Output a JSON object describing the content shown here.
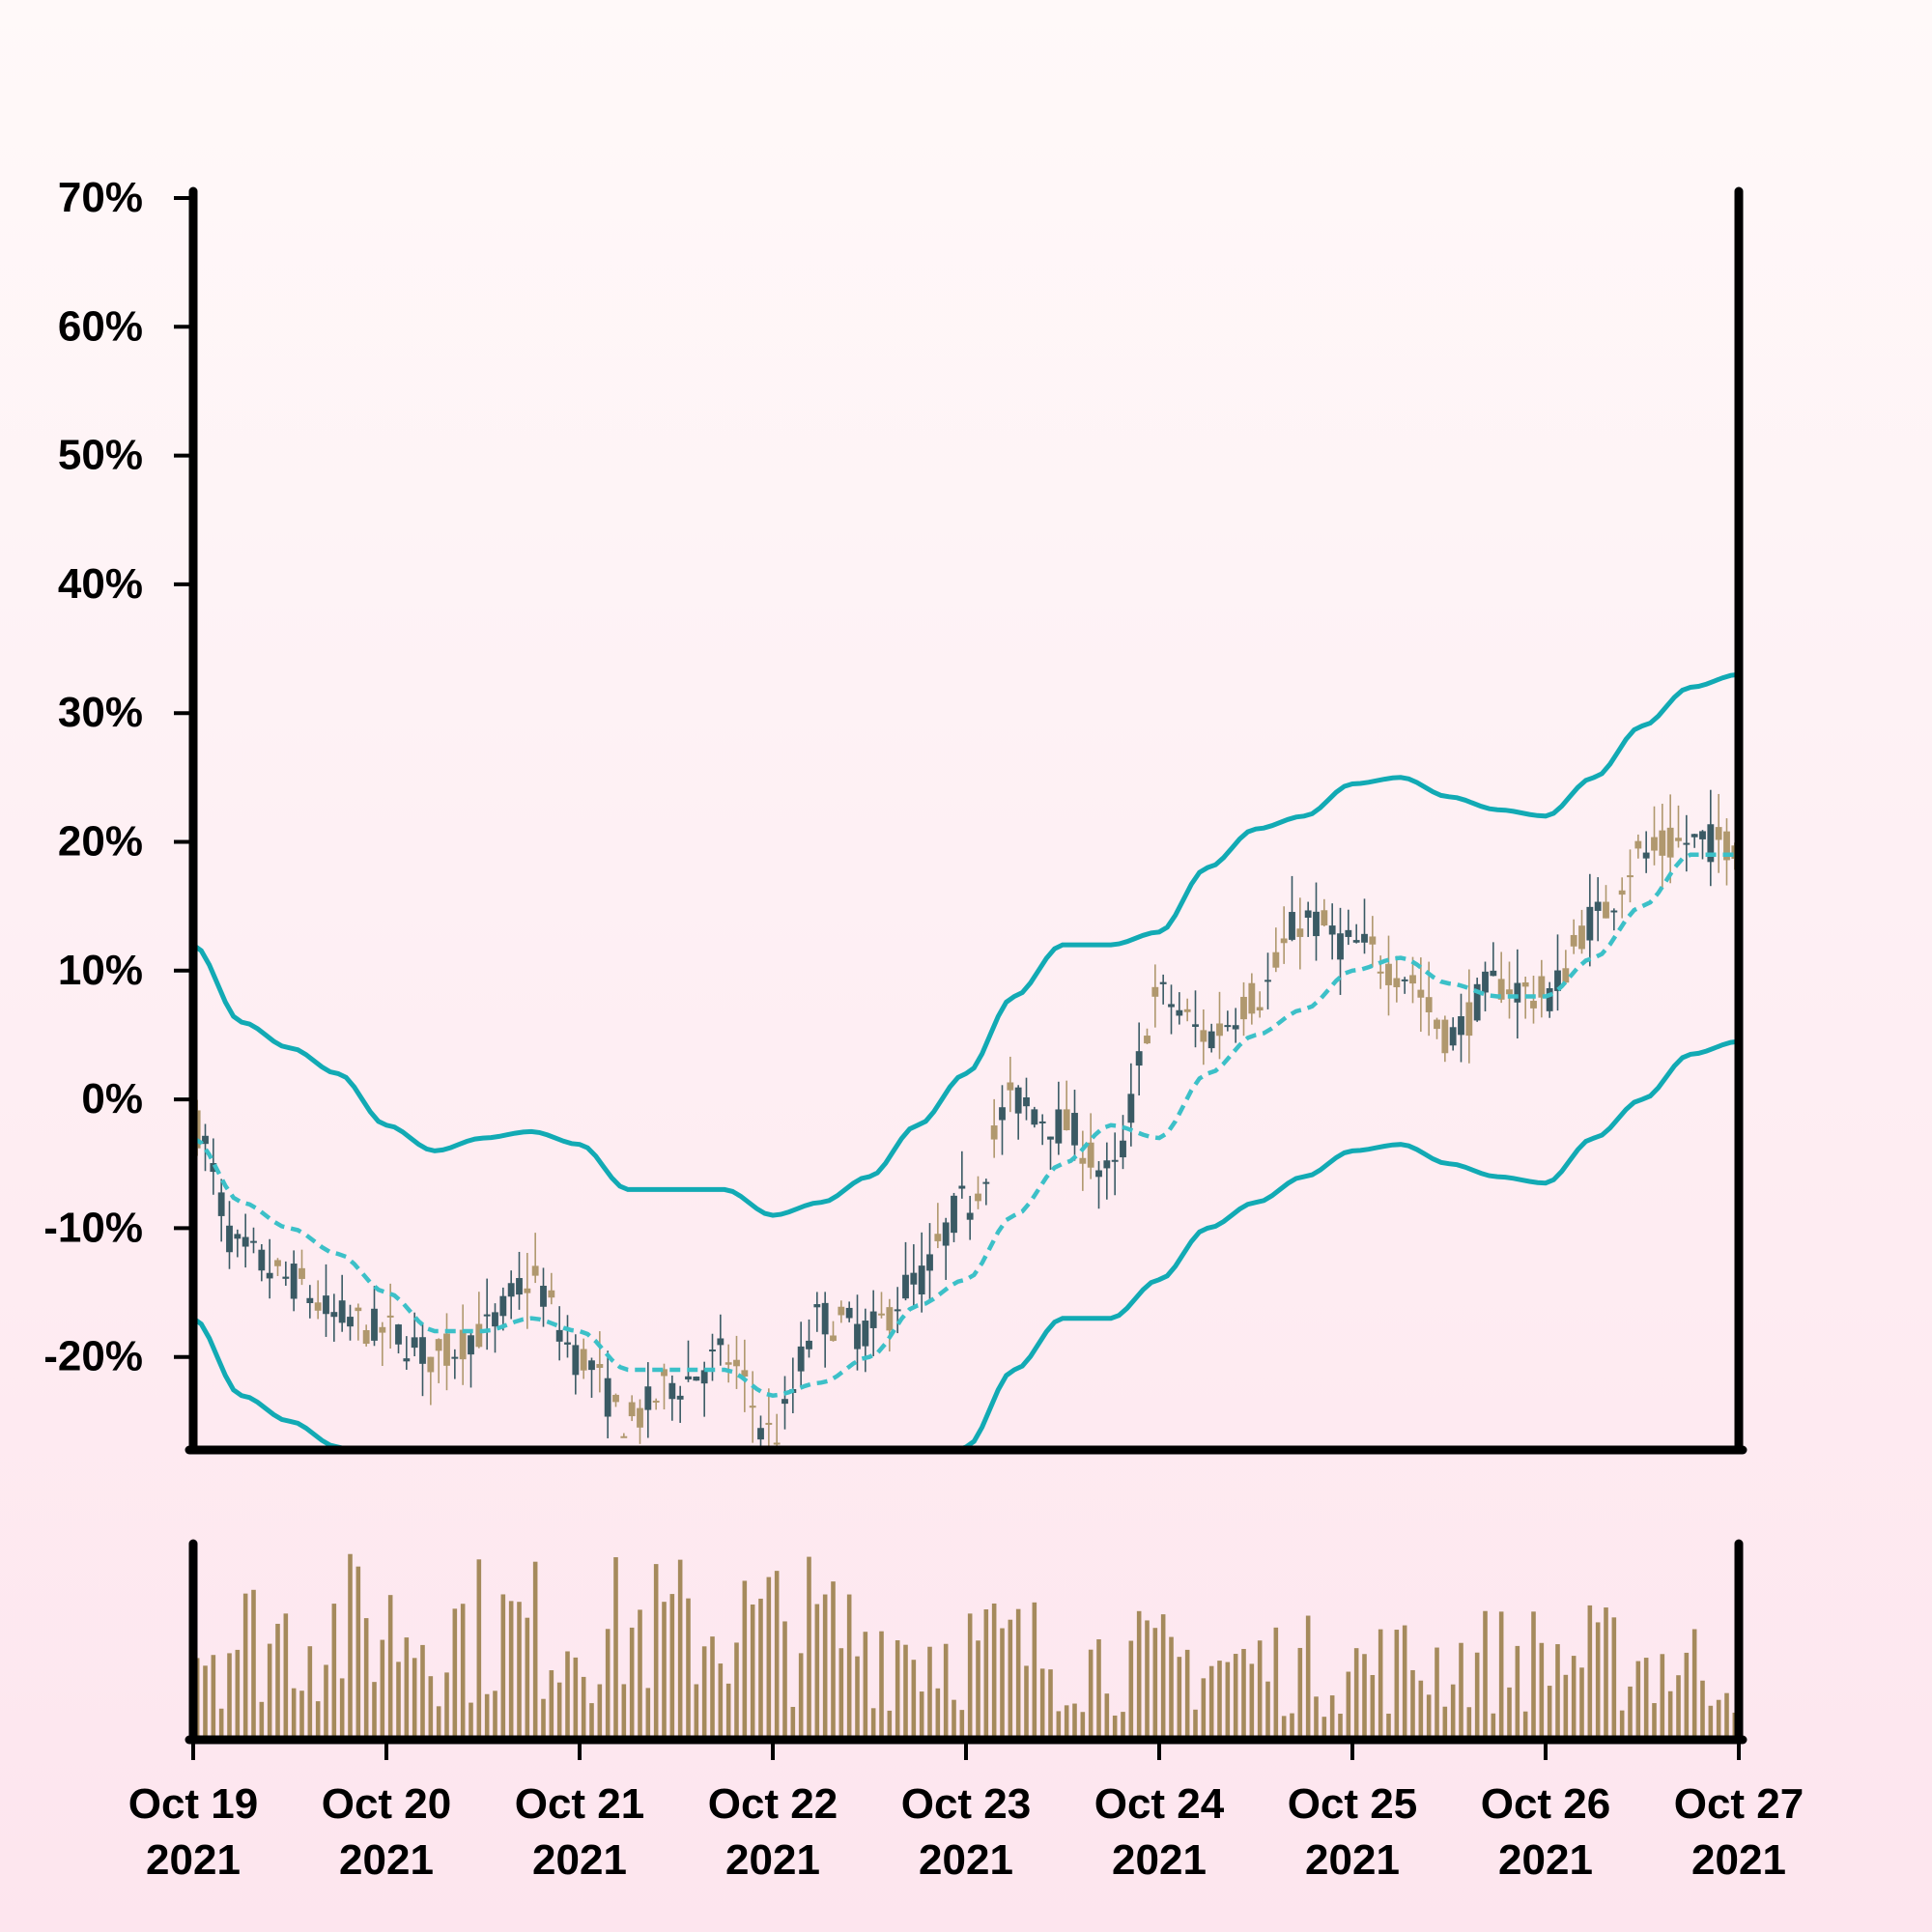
{
  "chart_data": {
    "type": "candlestick",
    "x_range": [
      "2021-10-19",
      "2021-10-27"
    ],
    "ylim": [
      -27,
      73
    ],
    "y_ticks": [
      "70%",
      "60%",
      "50%",
      "40%",
      "30%",
      "20%",
      "10%",
      "0%",
      "-10%",
      "-20%"
    ],
    "y_tick_values": [
      70,
      60,
      50,
      40,
      30,
      20,
      10,
      0,
      -10,
      -20
    ],
    "x_ticks": [
      {
        "date": "2021-10-19",
        "label1": "Oct 19",
        "label2": "2021"
      },
      {
        "date": "2021-10-20",
        "label1": "Oct 20",
        "label2": "2021"
      },
      {
        "date": "2021-10-21",
        "label1": "Oct 21",
        "label2": "2021"
      },
      {
        "date": "2021-10-22",
        "label1": "Oct 22",
        "label2": "2021"
      },
      {
        "date": "2021-10-23",
        "label1": "Oct 23",
        "label2": "2021"
      },
      {
        "date": "2021-10-24",
        "label1": "Oct 24",
        "label2": "2021"
      },
      {
        "date": "2021-10-25",
        "label1": "Oct 25",
        "label2": "2021"
      },
      {
        "date": "2021-10-26",
        "label1": "Oct 26",
        "label2": "2021"
      },
      {
        "date": "2021-10-27",
        "label1": "Oct 27",
        "label2": "2021"
      }
    ],
    "price_path": [
      [
        "2021-10-19 00:00",
        -2
      ],
      [
        "2021-10-19 06:00",
        -12
      ],
      [
        "2021-10-19 12:00",
        -14
      ],
      [
        "2021-10-19 18:00",
        -17
      ],
      [
        "2021-10-20 00:00",
        -18
      ],
      [
        "2021-10-20 06:00",
        -20
      ],
      [
        "2021-10-20 12:00",
        -18
      ],
      [
        "2021-10-20 18:00",
        -14
      ],
      [
        "2021-10-21 00:00",
        -20
      ],
      [
        "2021-10-21 06:00",
        -25
      ],
      [
        "2021-10-21 12:00",
        -22
      ],
      [
        "2021-10-21 18:00",
        -20
      ],
      [
        "2021-10-22 00:00",
        -26
      ],
      [
        "2021-10-22 06:00",
        -17
      ],
      [
        "2021-10-22 12:00",
        -18
      ],
      [
        "2021-10-22 18:00",
        -14
      ],
      [
        "2021-10-23 00:00",
        -8
      ],
      [
        "2021-10-23 06:00",
        0
      ],
      [
        "2021-10-23 12:00",
        -2
      ],
      [
        "2021-10-23 18:00",
        -6
      ],
      [
        "2021-10-24 00:00",
        8
      ],
      [
        "2021-10-24 06:00",
        5
      ],
      [
        "2021-10-24 12:00",
        8
      ],
      [
        "2021-10-24 18:00",
        14
      ],
      [
        "2021-10-25 00:00",
        12
      ],
      [
        "2021-10-25 06:00",
        10
      ],
      [
        "2021-10-25 12:00",
        5
      ],
      [
        "2021-10-25 18:00",
        9
      ],
      [
        "2021-10-26 00:00",
        8
      ],
      [
        "2021-10-26 06:00",
        14
      ],
      [
        "2021-10-26 12:00",
        19
      ],
      [
        "2021-10-26 18:00",
        20
      ],
      [
        "2021-10-27 00:00",
        20
      ]
    ],
    "ma_path": [
      [
        "2021-10-19 00:00",
        -3
      ],
      [
        "2021-10-19 06:00",
        -8
      ],
      [
        "2021-10-19 12:00",
        -10
      ],
      [
        "2021-10-19 18:00",
        -12
      ],
      [
        "2021-10-20 00:00",
        -15
      ],
      [
        "2021-10-20 06:00",
        -18
      ],
      [
        "2021-10-20 12:00",
        -18
      ],
      [
        "2021-10-20 18:00",
        -17
      ],
      [
        "2021-10-21 00:00",
        -18
      ],
      [
        "2021-10-21 06:00",
        -21
      ],
      [
        "2021-10-21 12:00",
        -21
      ],
      [
        "2021-10-21 18:00",
        -21
      ],
      [
        "2021-10-22 00:00",
        -23
      ],
      [
        "2021-10-22 06:00",
        -22
      ],
      [
        "2021-10-22 12:00",
        -20
      ],
      [
        "2021-10-22 18:00",
        -16
      ],
      [
        "2021-10-23 00:00",
        -14
      ],
      [
        "2021-10-23 06:00",
        -9
      ],
      [
        "2021-10-23 12:00",
        -5
      ],
      [
        "2021-10-23 18:00",
        -2
      ],
      [
        "2021-10-24 00:00",
        -3
      ],
      [
        "2021-10-24 06:00",
        2
      ],
      [
        "2021-10-24 12:00",
        5
      ],
      [
        "2021-10-24 18:00",
        7
      ],
      [
        "2021-10-25 00:00",
        10
      ],
      [
        "2021-10-25 06:00",
        11
      ],
      [
        "2021-10-25 12:00",
        9
      ],
      [
        "2021-10-25 18:00",
        8
      ],
      [
        "2021-10-26 00:00",
        8
      ],
      [
        "2021-10-26 06:00",
        11
      ],
      [
        "2021-10-26 12:00",
        15
      ],
      [
        "2021-10-26 18:00",
        19
      ],
      [
        "2021-10-27 00:00",
        19
      ]
    ],
    "upper_band": [
      [
        "2021-10-19 00:00",
        12
      ],
      [
        "2021-10-19 06:00",
        6
      ],
      [
        "2021-10-19 12:00",
        4
      ],
      [
        "2021-10-19 18:00",
        2
      ],
      [
        "2021-10-20 00:00",
        -2
      ],
      [
        "2021-10-20 06:00",
        -4
      ],
      [
        "2021-10-20 12:00",
        -3
      ],
      [
        "2021-10-20 18:00",
        -2.5
      ],
      [
        "2021-10-21 00:00",
        -3.5
      ],
      [
        "2021-10-21 06:00",
        -7
      ],
      [
        "2021-10-21 12:00",
        -7
      ],
      [
        "2021-10-21 18:00",
        -7
      ],
      [
        "2021-10-22 00:00",
        -9
      ],
      [
        "2021-10-22 06:00",
        -8
      ],
      [
        "2021-10-22 12:00",
        -6
      ],
      [
        "2021-10-22 18:00",
        -2
      ],
      [
        "2021-10-23 00:00",
        2
      ],
      [
        "2021-10-23 06:00",
        8
      ],
      [
        "2021-10-23 12:00",
        12
      ],
      [
        "2021-10-23 18:00",
        12
      ],
      [
        "2021-10-24 00:00",
        13
      ],
      [
        "2021-10-24 06:00",
        18
      ],
      [
        "2021-10-24 12:00",
        21
      ],
      [
        "2021-10-24 18:00",
        22
      ],
      [
        "2021-10-25 00:00",
        24.5
      ],
      [
        "2021-10-25 06:00",
        25
      ],
      [
        "2021-10-25 12:00",
        23.5
      ],
      [
        "2021-10-25 18:00",
        22.5
      ],
      [
        "2021-10-26 00:00",
        22
      ],
      [
        "2021-10-26 06:00",
        25
      ],
      [
        "2021-10-26 12:00",
        29
      ],
      [
        "2021-10-26 18:00",
        32
      ],
      [
        "2021-10-27 00:00",
        33
      ]
    ],
    "lower_band": [
      [
        "2021-10-19 00:00",
        -17
      ],
      [
        "2021-10-19 06:00",
        -23
      ],
      [
        "2021-10-19 12:00",
        -25
      ],
      [
        "2021-10-19 18:00",
        -27
      ],
      [
        "2021-10-20 00:00",
        -29
      ],
      [
        "2021-10-20 06:00",
        -31
      ],
      [
        "2021-10-20 12:00",
        -31
      ],
      [
        "2021-10-20 18:00",
        -32
      ],
      [
        "2021-10-21 00:00",
        -33
      ],
      [
        "2021-10-21 06:00",
        -35
      ],
      [
        "2021-10-21 12:00",
        -35
      ],
      [
        "2021-10-21 18:00",
        -35
      ],
      [
        "2021-10-22 00:00",
        -37
      ],
      [
        "2021-10-22 06:00",
        -36
      ],
      [
        "2021-10-22 12:00",
        -34
      ],
      [
        "2021-10-22 18:00",
        -30
      ],
      [
        "2021-10-23 00:00",
        -27
      ],
      [
        "2021-10-23 06:00",
        -21
      ],
      [
        "2021-10-23 12:00",
        -17
      ],
      [
        "2021-10-23 18:00",
        -17
      ],
      [
        "2021-10-24 00:00",
        -14
      ],
      [
        "2021-10-24 06:00",
        -10
      ],
      [
        "2021-10-24 12:00",
        -8
      ],
      [
        "2021-10-24 18:00",
        -6
      ],
      [
        "2021-10-25 00:00",
        -4
      ],
      [
        "2021-10-25 06:00",
        -3.5
      ],
      [
        "2021-10-25 12:00",
        -5
      ],
      [
        "2021-10-25 18:00",
        -6
      ],
      [
        "2021-10-26 00:00",
        -6.5
      ],
      [
        "2021-10-26 06:00",
        -3
      ],
      [
        "2021-10-26 12:00",
        0
      ],
      [
        "2021-10-26 18:00",
        3.5
      ],
      [
        "2021-10-27 00:00",
        4.5
      ]
    ],
    "volume_level": [
      [
        "2021-10-19 00:00",
        0.55
      ],
      [
        "2021-10-20 00:00",
        0.62
      ],
      [
        "2021-10-21 00:00",
        0.6
      ],
      [
        "2021-10-22 00:00",
        0.62
      ],
      [
        "2021-10-23 00:00",
        0.5
      ],
      [
        "2021-10-24 00:00",
        0.42
      ],
      [
        "2021-10-25 00:00",
        0.4
      ],
      [
        "2021-10-26 00:00",
        0.45
      ],
      [
        "2021-10-27 00:00",
        0.4
      ]
    ],
    "colors": {
      "up": "#b0986e",
      "down": "#3a5a64",
      "band": "#12aab4",
      "ma": "#3cc0c8",
      "volume": "#a58a5c",
      "axis": "#000000"
    },
    "grid": false
  }
}
